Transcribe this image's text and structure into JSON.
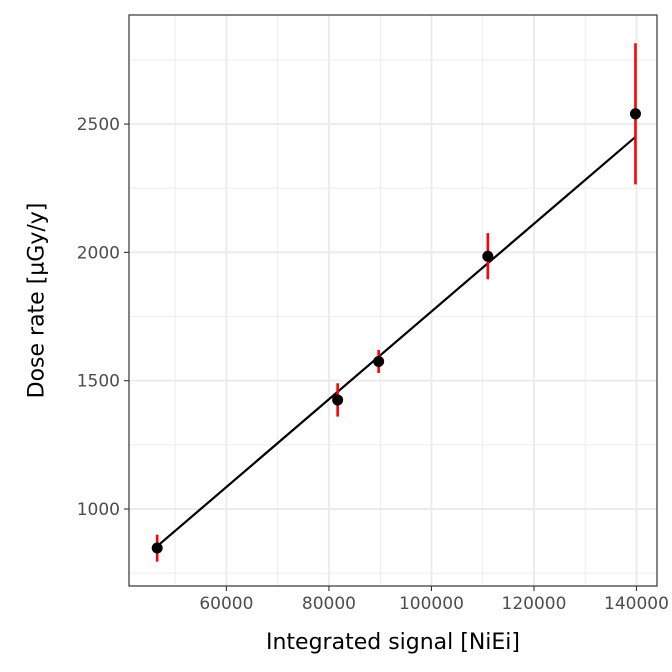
{
  "chart_data": {
    "type": "scatter",
    "title": "",
    "xlabel": "Integrated signal [NiEi]",
    "ylabel": "Dose rate [µGy/y]",
    "xlim": [
      41000,
      144000
    ],
    "ylim": [
      700,
      2925
    ],
    "x_ticks": [
      60000,
      80000,
      100000,
      120000,
      140000
    ],
    "x_tick_labels": [
      "60000",
      "80000",
      "100000",
      "120000",
      "140000"
    ],
    "y_ticks": [
      1000,
      1500,
      2000,
      2500
    ],
    "y_tick_labels": [
      "1000",
      "1500",
      "2000",
      "2500"
    ],
    "grid": true,
    "legend": "none",
    "series": [
      {
        "points": [
          {
            "x": 46500,
            "y": 848,
            "err_low": 795,
            "err_high": 900
          },
          {
            "x": 81700,
            "y": 1425,
            "err_low": 1360,
            "err_high": 1490
          },
          {
            "x": 89700,
            "y": 1575,
            "err_low": 1530,
            "err_high": 1620
          },
          {
            "x": 111000,
            "y": 1985,
            "err_low": 1895,
            "err_high": 2075
          },
          {
            "x": 139800,
            "y": 2540,
            "err_low": 2265,
            "err_high": 2815
          }
        ]
      }
    ],
    "fit_line": {
      "x": [
        46500,
        139800
      ],
      "y": [
        855,
        2450
      ]
    },
    "colors": {
      "points": "#000000",
      "error_bars": "#ff0000",
      "fit_line": "#000000",
      "grid": "#ebebeb",
      "panel_border": "#333333"
    }
  }
}
